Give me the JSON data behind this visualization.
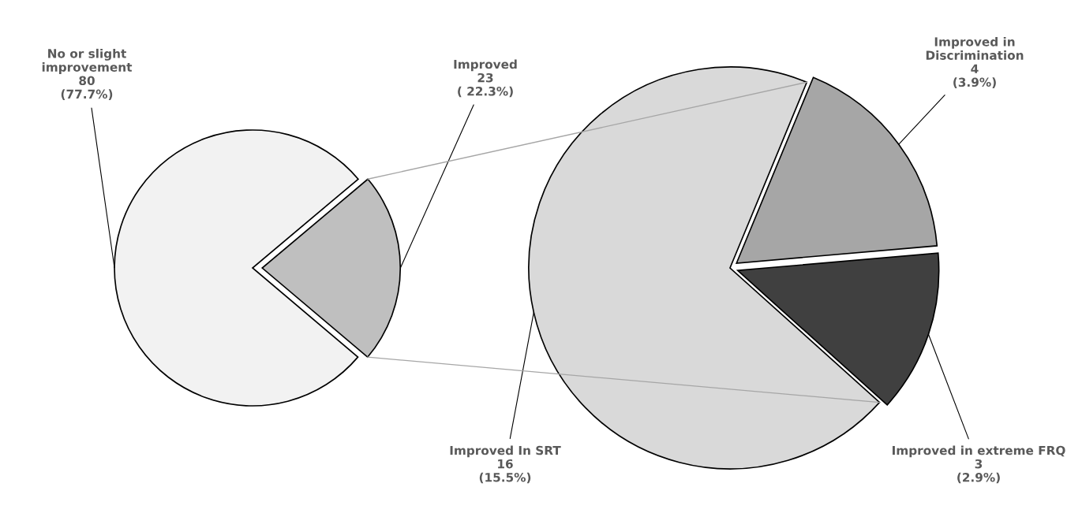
{
  "chart_data": [
    {
      "type": "pie",
      "categories": [
        "No or slight\nimprovement",
        "Improved"
      ],
      "values": [
        80,
        23
      ],
      "colors": [
        "#f2f2f2",
        "#bfbfbf"
      ],
      "value_labels": [
        "80\n(77.7%)",
        "23\n( 22.3%)"
      ]
    },
    {
      "type": "pie",
      "categories": [
        "Improved In SRT",
        "Improved in\nDiscrimination",
        "Improved in extreme FRQ"
      ],
      "values": [
        16,
        4,
        3
      ],
      "colors": [
        "#d9d9d9",
        "#a6a6a6",
        "#404040"
      ],
      "value_labels": [
        "16\n(15.5%)",
        "4\n(3.9%)",
        "3\n(2.9%)"
      ]
    }
  ]
}
